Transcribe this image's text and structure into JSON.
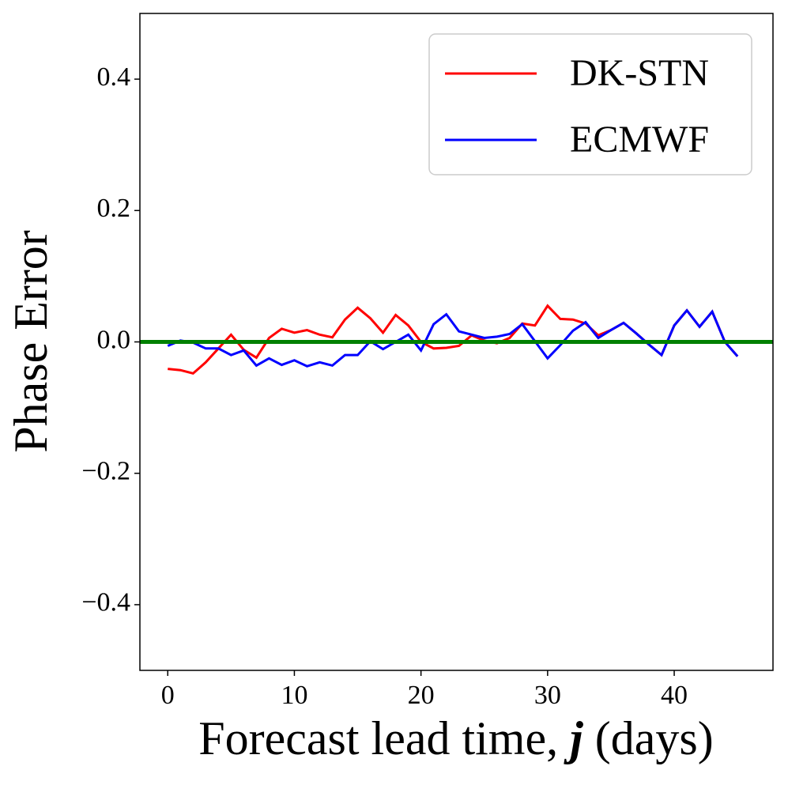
{
  "chart_data": {
    "type": "line",
    "xlabel_parts": [
      "Forecast lead time, ",
      "j",
      " (days)"
    ],
    "ylabel": "Phase Error",
    "x": [
      0,
      1,
      2,
      3,
      4,
      5,
      6,
      7,
      8,
      9,
      10,
      11,
      12,
      13,
      14,
      15,
      16,
      17,
      18,
      19,
      20,
      21,
      22,
      23,
      24,
      25,
      26,
      27,
      28,
      29,
      30,
      31,
      32,
      33,
      34,
      35,
      36,
      37,
      38,
      39,
      40,
      41,
      42,
      43,
      44,
      45
    ],
    "series": [
      {
        "name": "DK-STN",
        "color": "#ff0000",
        "values": [
          -0.041,
          -0.043,
          -0.048,
          -0.031,
          -0.01,
          0.011,
          -0.012,
          -0.024,
          0.006,
          0.02,
          0.014,
          0.018,
          0.011,
          0.007,
          0.034,
          0.052,
          0.036,
          0.014,
          0.041,
          0.025,
          0.0,
          -0.01,
          -0.009,
          -0.006,
          0.01,
          0.002,
          -0.002,
          0.006,
          0.028,
          0.025,
          0.055,
          0.035,
          0.034,
          0.028,
          0.01,
          0.018,
          0.029,
          0.013,
          -0.004,
          -0.02,
          0.025,
          0.048,
          0.023,
          0.046,
          0.0,
          -0.022
        ]
      },
      {
        "name": "ECMWF",
        "color": "#0000ff",
        "values": [
          -0.006,
          0.002,
          -0.001,
          -0.01,
          -0.01,
          -0.02,
          -0.013,
          -0.036,
          -0.025,
          -0.035,
          -0.028,
          -0.037,
          -0.031,
          -0.036,
          -0.02,
          -0.02,
          0.001,
          -0.011,
          0.0,
          0.011,
          -0.013,
          0.027,
          0.042,
          0.016,
          0.011,
          0.006,
          0.008,
          0.012,
          0.027,
          0.001,
          -0.025,
          -0.005,
          0.017,
          0.03,
          0.006,
          0.018,
          0.029,
          0.013,
          -0.004,
          -0.02,
          0.025,
          0.048,
          0.023,
          0.046,
          0.0,
          -0.022
        ]
      }
    ],
    "hline": {
      "value": 0,
      "color": "#008000"
    },
    "xlim": [
      -2.2,
      47.8
    ],
    "xticks": [
      0,
      10,
      20,
      30,
      40
    ],
    "ylim": [
      -0.5,
      0.5
    ],
    "yticks": [
      {
        "value": -0.4,
        "label": "−0.4"
      },
      {
        "value": -0.2,
        "label": "−0.2"
      },
      {
        "value": 0,
        "label": "0.0"
      },
      0.2,
      0.4
    ],
    "legend": "upper right"
  }
}
